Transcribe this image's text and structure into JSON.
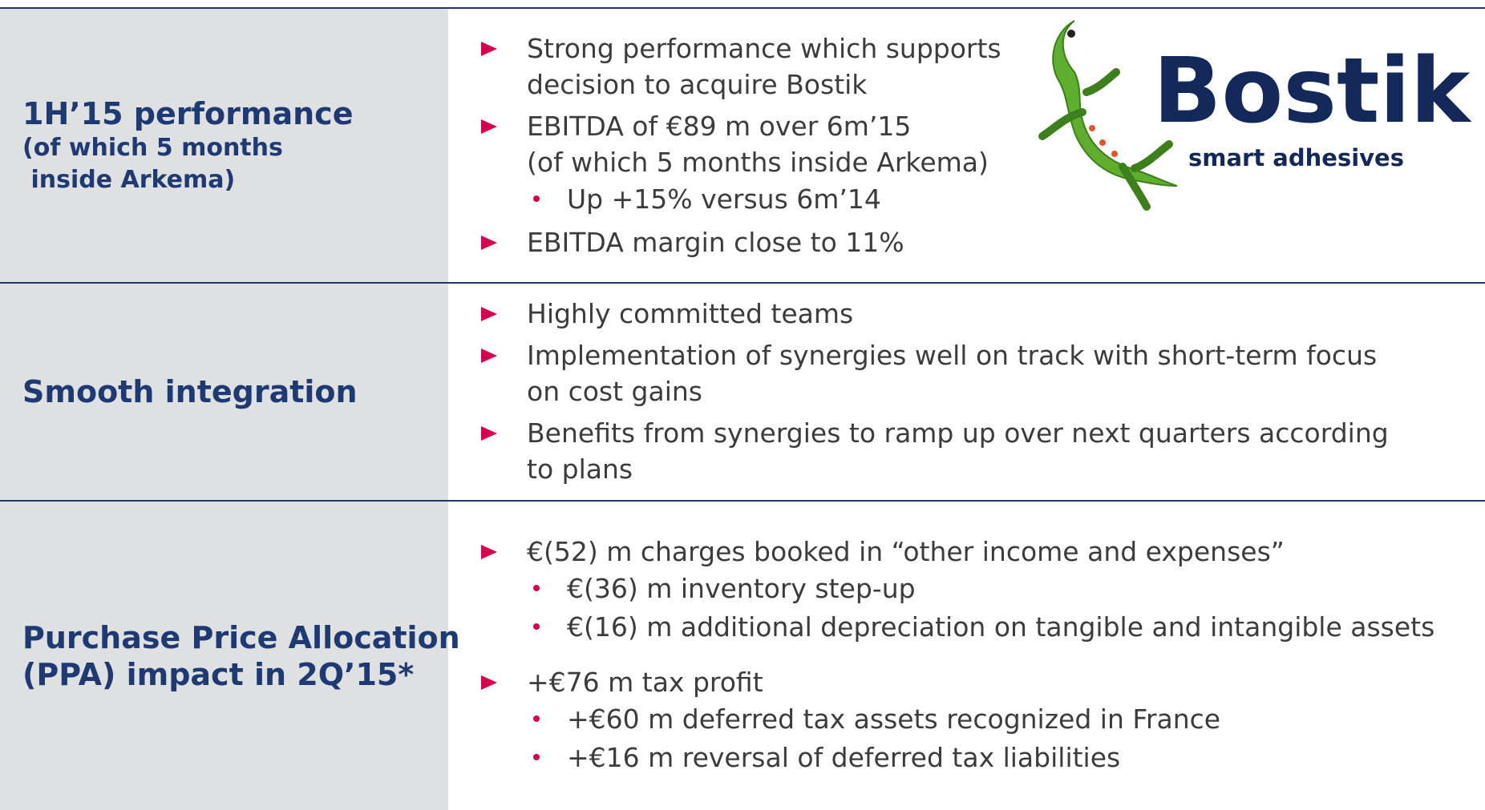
{
  "logo": {
    "name": "Bostik",
    "tagline": "smart adhesives"
  },
  "rows": [
    {
      "label": [
        "1H’15 performance",
        "(of which 5 months",
        " inside Arkema)"
      ],
      "bullets": [
        {
          "lines": [
            "Strong performance which supports",
            "decision to acquire Bostik"
          ],
          "subs": []
        },
        {
          "lines": [
            "EBITDA of €89 m over 6m’15",
            "(of which 5 months inside Arkema)"
          ],
          "subs": [
            "Up +15% versus 6m’14"
          ]
        },
        {
          "lines": [
            "EBITDA margin close to 11%"
          ],
          "subs": []
        }
      ]
    },
    {
      "label": [
        "Smooth integration"
      ],
      "bullets": [
        {
          "lines": [
            "Highly committed teams"
          ],
          "subs": []
        },
        {
          "lines": [
            "Implementation of synergies well on track with short-term focus",
            "on cost gains"
          ],
          "subs": []
        },
        {
          "lines": [
            "Benefits from synergies to ramp up over next quarters according",
            "to plans"
          ],
          "subs": []
        }
      ]
    },
    {
      "label": [
        "Purchase Price Allocation",
        "(PPA) impact in 2Q’15*"
      ],
      "bullets": [
        {
          "lines": [
            "€(52) m charges booked in “other income and expenses”"
          ],
          "subs": [
            "€(36) m inventory step-up",
            "€(16) m additional depreciation on tangible and intangible assets"
          ]
        },
        {
          "lines": [
            "+€76 m tax profit"
          ],
          "subs": [
            "+€60 m deferred tax assets recognized in France",
            "+€16 m reversal of deferred tax liabilities"
          ]
        }
      ]
    }
  ]
}
